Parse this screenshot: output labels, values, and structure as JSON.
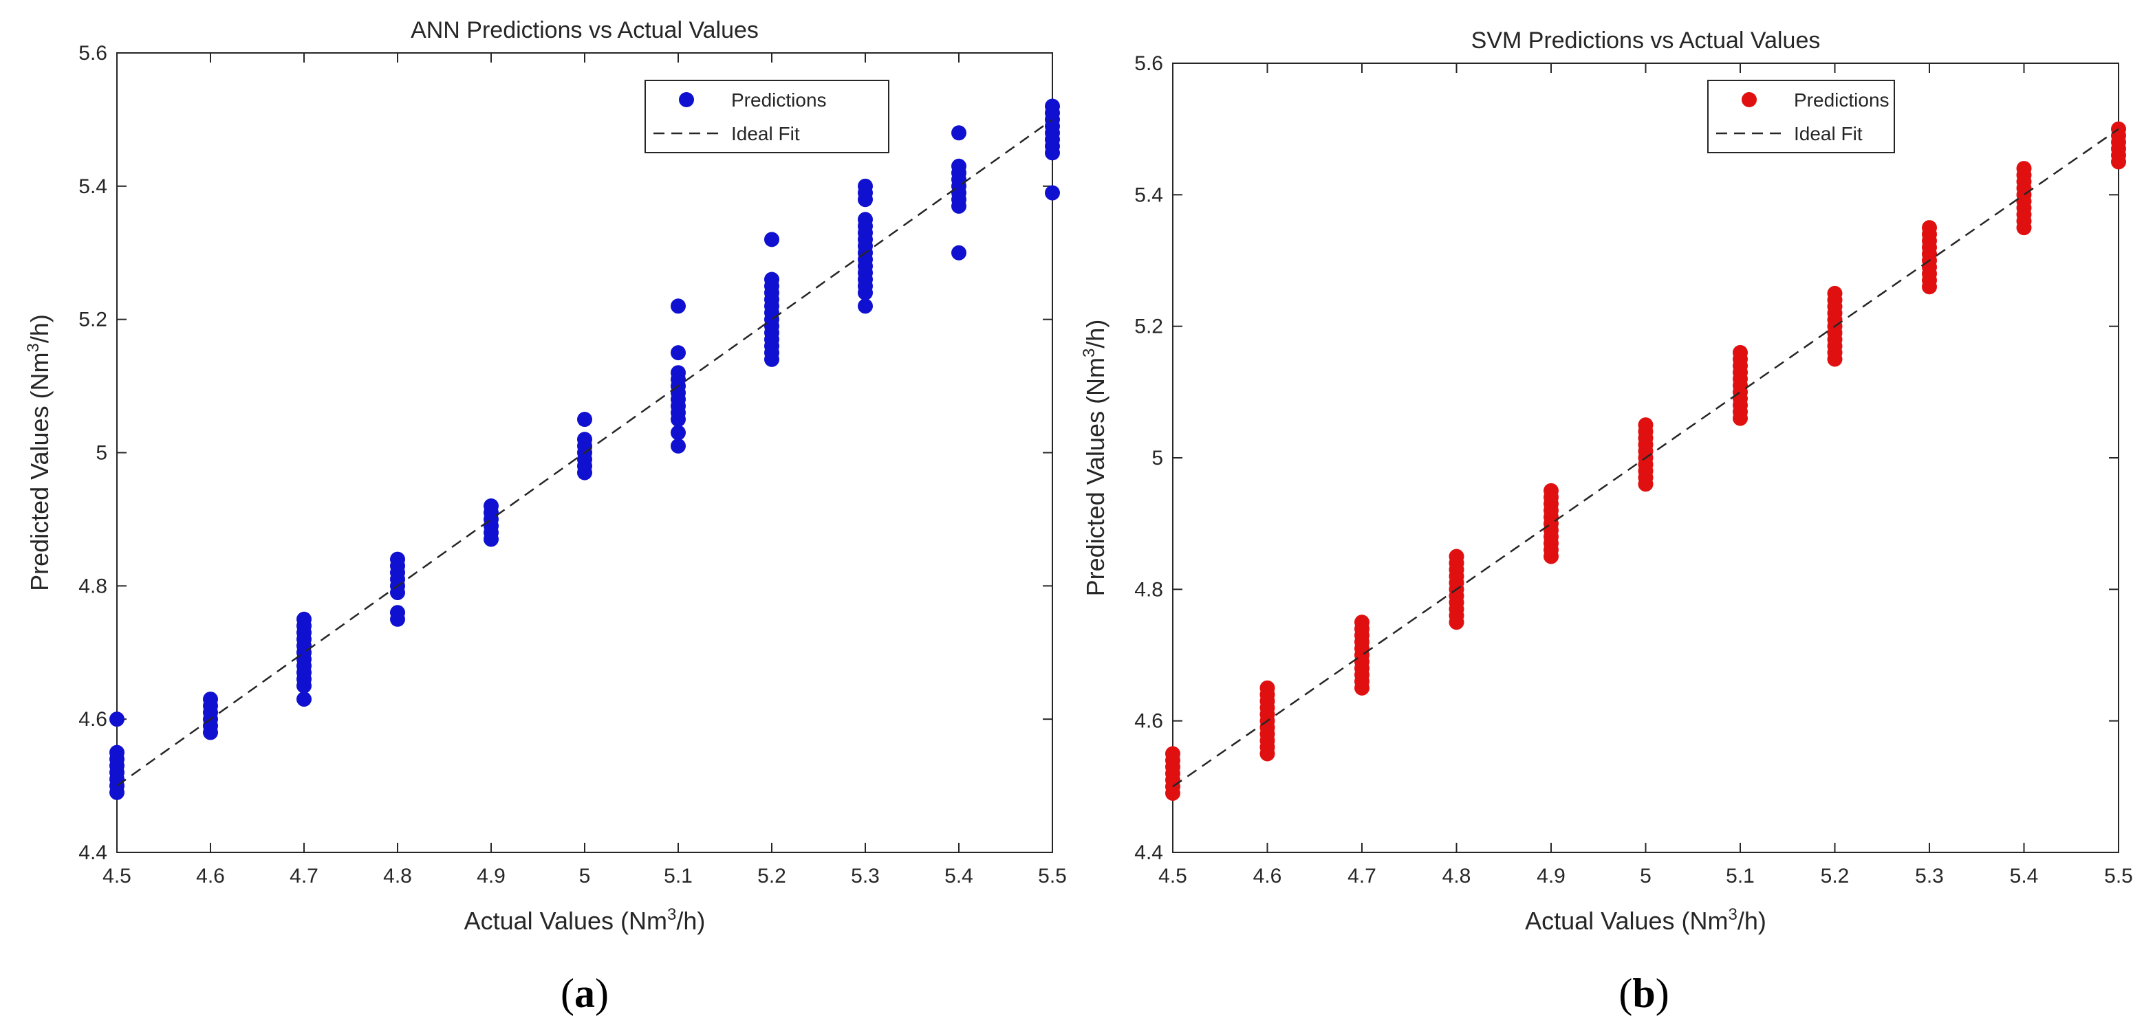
{
  "chart_data": [
    {
      "type": "scatter",
      "caption_letter": "a",
      "title": "ANN Predictions vs Actual Values",
      "xlabel_pre": "Actual Values (Nm",
      "xlabel_sup": "3",
      "xlabel_post": "/h)",
      "ylabel_pre": "Predicted Values (Nm",
      "ylabel_sup": "3",
      "ylabel_post": "/h)",
      "xlim": [
        4.5,
        5.5
      ],
      "ylim": [
        4.4,
        5.6
      ],
      "xticks": [
        "4.5",
        "4.6",
        "4.7",
        "4.8",
        "4.9",
        "5",
        "5.1",
        "5.2",
        "5.3",
        "5.4",
        "5.5"
      ],
      "yticks": [
        "4.4",
        "4.6",
        "4.8",
        "5",
        "5.2",
        "5.4",
        "5.6"
      ],
      "legend_position": "top-right",
      "grid": false,
      "series": [
        {
          "name": "Predictions",
          "marker": "circle",
          "color": "#1010d0",
          "points": [
            [
              4.5,
              4.49
            ],
            [
              4.5,
              4.5
            ],
            [
              4.5,
              4.51
            ],
            [
              4.5,
              4.52
            ],
            [
              4.5,
              4.53
            ],
            [
              4.5,
              4.54
            ],
            [
              4.5,
              4.55
            ],
            [
              4.5,
              4.6
            ],
            [
              4.6,
              4.58
            ],
            [
              4.6,
              4.59
            ],
            [
              4.6,
              4.6
            ],
            [
              4.6,
              4.61
            ],
            [
              4.6,
              4.62
            ],
            [
              4.6,
              4.63
            ],
            [
              4.7,
              4.63
            ],
            [
              4.7,
              4.65
            ],
            [
              4.7,
              4.66
            ],
            [
              4.7,
              4.67
            ],
            [
              4.7,
              4.68
            ],
            [
              4.7,
              4.69
            ],
            [
              4.7,
              4.7
            ],
            [
              4.7,
              4.71
            ],
            [
              4.7,
              4.72
            ],
            [
              4.7,
              4.73
            ],
            [
              4.7,
              4.74
            ],
            [
              4.7,
              4.75
            ],
            [
              4.8,
              4.75
            ],
            [
              4.8,
              4.76
            ],
            [
              4.8,
              4.79
            ],
            [
              4.8,
              4.8
            ],
            [
              4.8,
              4.81
            ],
            [
              4.8,
              4.82
            ],
            [
              4.8,
              4.83
            ],
            [
              4.8,
              4.84
            ],
            [
              4.9,
              4.87
            ],
            [
              4.9,
              4.88
            ],
            [
              4.9,
              4.89
            ],
            [
              4.9,
              4.9
            ],
            [
              4.9,
              4.91
            ],
            [
              4.9,
              4.92
            ],
            [
              5.0,
              4.97
            ],
            [
              5.0,
              4.98
            ],
            [
              5.0,
              4.99
            ],
            [
              5.0,
              5.0
            ],
            [
              5.0,
              5.01
            ],
            [
              5.0,
              5.02
            ],
            [
              5.0,
              5.05
            ],
            [
              5.1,
              5.01
            ],
            [
              5.1,
              5.03
            ],
            [
              5.1,
              5.05
            ],
            [
              5.1,
              5.06
            ],
            [
              5.1,
              5.07
            ],
            [
              5.1,
              5.08
            ],
            [
              5.1,
              5.09
            ],
            [
              5.1,
              5.1
            ],
            [
              5.1,
              5.11
            ],
            [
              5.1,
              5.12
            ],
            [
              5.1,
              5.15
            ],
            [
              5.1,
              5.22
            ],
            [
              5.2,
              5.14
            ],
            [
              5.2,
              5.15
            ],
            [
              5.2,
              5.16
            ],
            [
              5.2,
              5.17
            ],
            [
              5.2,
              5.18
            ],
            [
              5.2,
              5.19
            ],
            [
              5.2,
              5.2
            ],
            [
              5.2,
              5.21
            ],
            [
              5.2,
              5.22
            ],
            [
              5.2,
              5.23
            ],
            [
              5.2,
              5.24
            ],
            [
              5.2,
              5.25
            ],
            [
              5.2,
              5.26
            ],
            [
              5.2,
              5.32
            ],
            [
              5.3,
              5.22
            ],
            [
              5.3,
              5.24
            ],
            [
              5.3,
              5.25
            ],
            [
              5.3,
              5.26
            ],
            [
              5.3,
              5.27
            ],
            [
              5.3,
              5.28
            ],
            [
              5.3,
              5.29
            ],
            [
              5.3,
              5.3
            ],
            [
              5.3,
              5.31
            ],
            [
              5.3,
              5.32
            ],
            [
              5.3,
              5.33
            ],
            [
              5.3,
              5.34
            ],
            [
              5.3,
              5.35
            ],
            [
              5.3,
              5.38
            ],
            [
              5.3,
              5.39
            ],
            [
              5.3,
              5.4
            ],
            [
              5.4,
              5.3
            ],
            [
              5.4,
              5.37
            ],
            [
              5.4,
              5.38
            ],
            [
              5.4,
              5.39
            ],
            [
              5.4,
              5.4
            ],
            [
              5.4,
              5.41
            ],
            [
              5.4,
              5.42
            ],
            [
              5.4,
              5.43
            ],
            [
              5.4,
              5.48
            ],
            [
              5.5,
              5.39
            ],
            [
              5.5,
              5.45
            ],
            [
              5.5,
              5.46
            ],
            [
              5.5,
              5.47
            ],
            [
              5.5,
              5.48
            ],
            [
              5.5,
              5.49
            ],
            [
              5.5,
              5.5
            ],
            [
              5.5,
              5.51
            ],
            [
              5.5,
              5.52
            ]
          ]
        },
        {
          "name": "Ideal Fit",
          "style": "dashed",
          "color": "#262626",
          "points": [
            [
              4.5,
              4.5
            ],
            [
              5.5,
              5.5
            ]
          ]
        }
      ]
    },
    {
      "type": "scatter",
      "caption_letter": "b",
      "title": "SVM Predictions vs Actual Values",
      "xlabel_pre": "Actual Values (Nm",
      "xlabel_sup": "3",
      "xlabel_post": "/h)",
      "ylabel_pre": "Predicted Values (Nm",
      "ylabel_sup": "3",
      "ylabel_post": "/h)",
      "xlim": [
        4.5,
        5.5
      ],
      "ylim": [
        4.4,
        5.6
      ],
      "xticks": [
        "4.5",
        "4.6",
        "4.7",
        "4.8",
        "4.9",
        "5",
        "5.1",
        "5.2",
        "5.3",
        "5.4",
        "5.5"
      ],
      "yticks": [
        "4.4",
        "4.6",
        "4.8",
        "5",
        "5.2",
        "5.4",
        "5.6"
      ],
      "legend_position": "top-right",
      "grid": false,
      "series": [
        {
          "name": "Predictions",
          "marker": "circle",
          "color": "#e01010",
          "points": [
            [
              4.5,
              4.49
            ],
            [
              4.5,
              4.5
            ],
            [
              4.5,
              4.51
            ],
            [
              4.5,
              4.52
            ],
            [
              4.5,
              4.53
            ],
            [
              4.5,
              4.54
            ],
            [
              4.5,
              4.55
            ],
            [
              4.6,
              4.55
            ],
            [
              4.6,
              4.56
            ],
            [
              4.6,
              4.57
            ],
            [
              4.6,
              4.58
            ],
            [
              4.6,
              4.59
            ],
            [
              4.6,
              4.6
            ],
            [
              4.6,
              4.61
            ],
            [
              4.6,
              4.62
            ],
            [
              4.6,
              4.63
            ],
            [
              4.6,
              4.64
            ],
            [
              4.6,
              4.65
            ],
            [
              4.7,
              4.65
            ],
            [
              4.7,
              4.66
            ],
            [
              4.7,
              4.67
            ],
            [
              4.7,
              4.68
            ],
            [
              4.7,
              4.69
            ],
            [
              4.7,
              4.7
            ],
            [
              4.7,
              4.71
            ],
            [
              4.7,
              4.72
            ],
            [
              4.7,
              4.73
            ],
            [
              4.7,
              4.74
            ],
            [
              4.7,
              4.75
            ],
            [
              4.8,
              4.75
            ],
            [
              4.8,
              4.76
            ],
            [
              4.8,
              4.77
            ],
            [
              4.8,
              4.78
            ],
            [
              4.8,
              4.79
            ],
            [
              4.8,
              4.8
            ],
            [
              4.8,
              4.81
            ],
            [
              4.8,
              4.82
            ],
            [
              4.8,
              4.83
            ],
            [
              4.8,
              4.84
            ],
            [
              4.8,
              4.85
            ],
            [
              4.9,
              4.85
            ],
            [
              4.9,
              4.86
            ],
            [
              4.9,
              4.87
            ],
            [
              4.9,
              4.88
            ],
            [
              4.9,
              4.89
            ],
            [
              4.9,
              4.9
            ],
            [
              4.9,
              4.91
            ],
            [
              4.9,
              4.92
            ],
            [
              4.9,
              4.93
            ],
            [
              4.9,
              4.94
            ],
            [
              4.9,
              4.95
            ],
            [
              5.0,
              4.96
            ],
            [
              5.0,
              4.97
            ],
            [
              5.0,
              4.98
            ],
            [
              5.0,
              4.99
            ],
            [
              5.0,
              5.0
            ],
            [
              5.0,
              5.01
            ],
            [
              5.0,
              5.02
            ],
            [
              5.0,
              5.03
            ],
            [
              5.0,
              5.04
            ],
            [
              5.0,
              5.05
            ],
            [
              5.1,
              5.06
            ],
            [
              5.1,
              5.07
            ],
            [
              5.1,
              5.08
            ],
            [
              5.1,
              5.09
            ],
            [
              5.1,
              5.1
            ],
            [
              5.1,
              5.11
            ],
            [
              5.1,
              5.12
            ],
            [
              5.1,
              5.13
            ],
            [
              5.1,
              5.14
            ],
            [
              5.1,
              5.15
            ],
            [
              5.1,
              5.16
            ],
            [
              5.2,
              5.15
            ],
            [
              5.2,
              5.16
            ],
            [
              5.2,
              5.17
            ],
            [
              5.2,
              5.18
            ],
            [
              5.2,
              5.19
            ],
            [
              5.2,
              5.2
            ],
            [
              5.2,
              5.21
            ],
            [
              5.2,
              5.22
            ],
            [
              5.2,
              5.23
            ],
            [
              5.2,
              5.24
            ],
            [
              5.2,
              5.25
            ],
            [
              5.3,
              5.26
            ],
            [
              5.3,
              5.27
            ],
            [
              5.3,
              5.28
            ],
            [
              5.3,
              5.29
            ],
            [
              5.3,
              5.3
            ],
            [
              5.3,
              5.31
            ],
            [
              5.3,
              5.32
            ],
            [
              5.3,
              5.33
            ],
            [
              5.3,
              5.34
            ],
            [
              5.3,
              5.35
            ],
            [
              5.4,
              5.35
            ],
            [
              5.4,
              5.36
            ],
            [
              5.4,
              5.37
            ],
            [
              5.4,
              5.38
            ],
            [
              5.4,
              5.39
            ],
            [
              5.4,
              5.4
            ],
            [
              5.4,
              5.41
            ],
            [
              5.4,
              5.42
            ],
            [
              5.4,
              5.43
            ],
            [
              5.4,
              5.44
            ],
            [
              5.5,
              5.45
            ],
            [
              5.5,
              5.46
            ],
            [
              5.5,
              5.47
            ],
            [
              5.5,
              5.48
            ],
            [
              5.5,
              5.49
            ],
            [
              5.5,
              5.5
            ]
          ]
        },
        {
          "name": "Ideal Fit",
          "style": "dashed",
          "color": "#262626",
          "points": [
            [
              4.5,
              4.5
            ],
            [
              5.5,
              5.5
            ]
          ]
        }
      ]
    }
  ]
}
